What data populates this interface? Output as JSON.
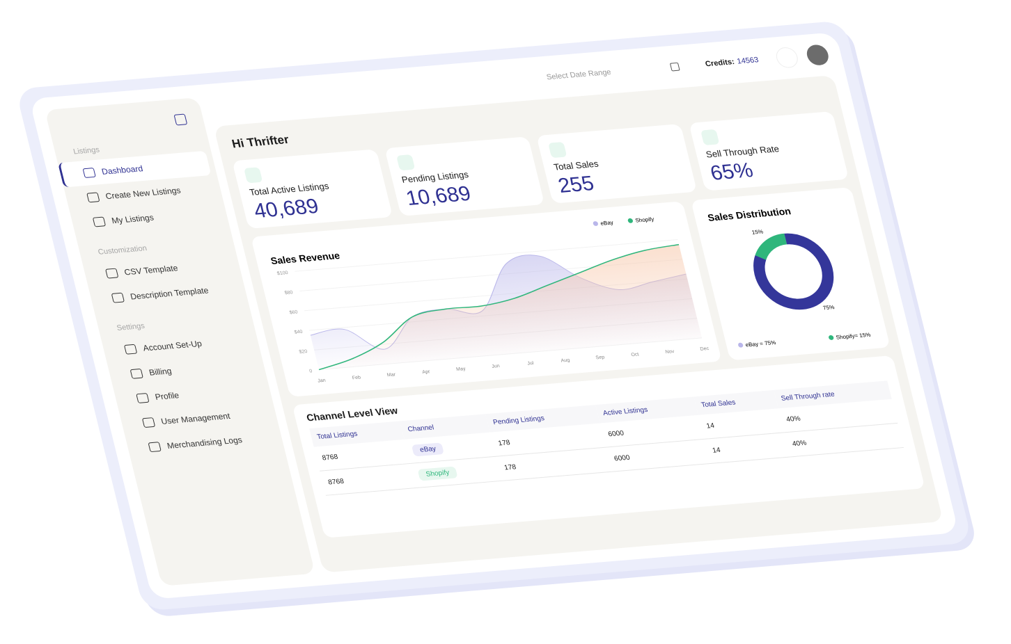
{
  "header": {
    "greeting": "Hi Thrifter",
    "date_placeholder": "Select Date Range",
    "credits_label": "Credits:",
    "credits_value": "14563"
  },
  "sidebar": {
    "sections": [
      {
        "title": "Listings",
        "items": [
          "Dashboard",
          "Create New Listings",
          "My Listings"
        ]
      },
      {
        "title": "Customization",
        "items": [
          "CSV Template",
          "Description Template"
        ]
      },
      {
        "title": "Settings",
        "items": [
          "Account Set-Up",
          "Billing",
          "Profile",
          "User Management",
          "Merchandising Logs"
        ]
      }
    ]
  },
  "stats": [
    {
      "label": "Total Active Listings",
      "value": "40,689"
    },
    {
      "label": "Pending Listings",
      "value": "10,689"
    },
    {
      "label": "Total Sales",
      "value": "255"
    },
    {
      "label": "Sell Through Rate",
      "value": "65%"
    }
  ],
  "chart_data": [
    {
      "type": "line",
      "title": "Sales Revenue",
      "categories": [
        "Jan",
        "Feb",
        "Mar",
        "Apr",
        "May",
        "Jun",
        "Jul",
        "Aug",
        "Sep",
        "Oct",
        "Nov",
        "Dec"
      ],
      "series": [
        {
          "name": "eBay",
          "color": "#b9b6ea",
          "values": [
            35,
            38,
            15,
            45,
            50,
            45,
            90,
            95,
            70,
            55,
            60,
            65
          ]
        },
        {
          "name": "Shopify",
          "color": "#2fb67c",
          "values": [
            0,
            8,
            22,
            45,
            50,
            50,
            55,
            65,
            75,
            85,
            92,
            95
          ]
        }
      ],
      "ylim": [
        0,
        100
      ],
      "yticks": [
        0,
        {
          "value": 20,
          "label": "$20"
        },
        {
          "value": 40,
          "label": "$40"
        },
        {
          "value": 60,
          "label": "$60"
        },
        {
          "value": 80,
          "label": "$80"
        },
        {
          "value": 100,
          "label": "$100"
        }
      ],
      "grid": true,
      "legend": "top-right"
    },
    {
      "type": "donut",
      "title": "Sales Distribution",
      "series": [
        {
          "name": "eBay",
          "color": "#34369a",
          "values": [
            75
          ],
          "value_labels": [
            "75%"
          ],
          "legend_label": "eBay = 75%"
        },
        {
          "name": "Shopify",
          "color": "#2fb67c",
          "values": [
            15
          ],
          "value_labels": [
            "15%"
          ],
          "legend_label": "Shopify= 15%"
        }
      ]
    }
  ],
  "table": {
    "title": "Channel Level View",
    "columns": [
      "Total Listings",
      "Channel",
      "Pending Listings",
      "Active Listings",
      "Total Sales",
      "Sell Through rate"
    ],
    "rows": [
      [
        "8768",
        "eBay",
        "178",
        "6000",
        "14",
        "40%"
      ],
      [
        "8768",
        "Shopify",
        "178",
        "6000",
        "14",
        "40%"
      ]
    ]
  }
}
